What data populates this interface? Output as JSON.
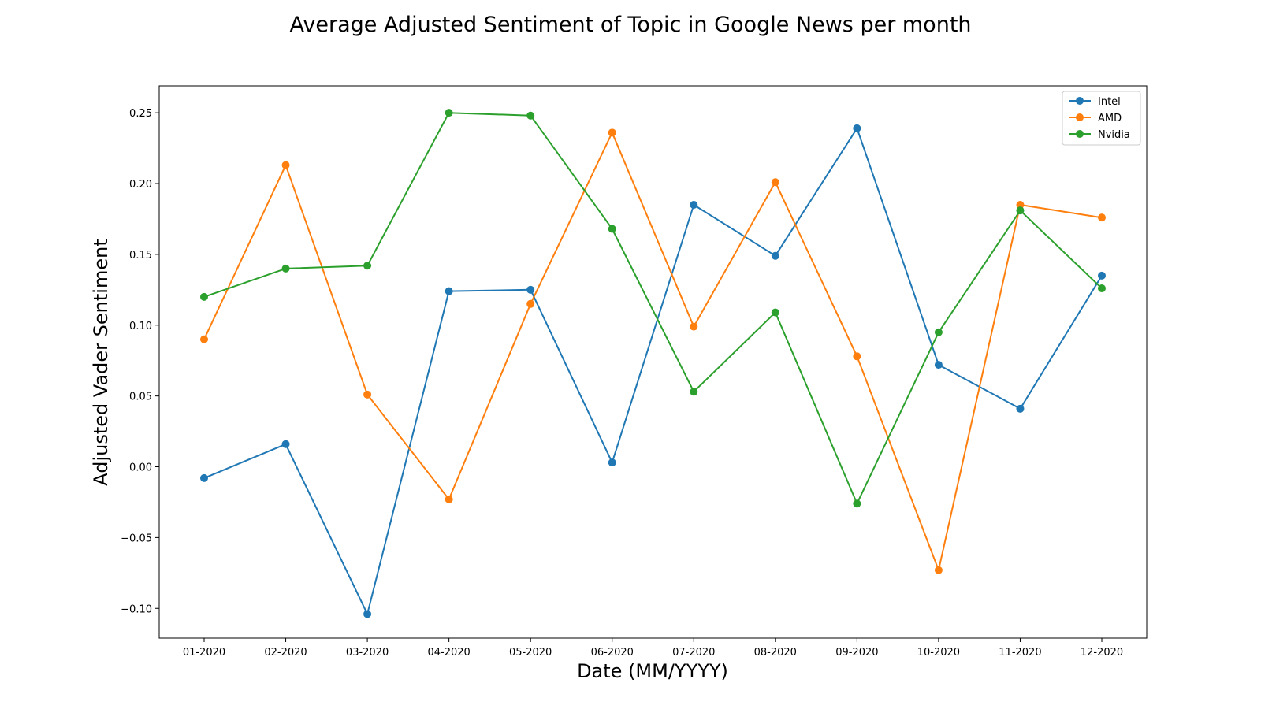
{
  "chart_data": {
    "type": "line",
    "title": "Average Adjusted Sentiment of Topic in Google News per month",
    "xlabel": "Date (MM/YYYY)",
    "ylabel": "Adjusted Vader Sentiment",
    "categories": [
      "01-2020",
      "02-2020",
      "03-2020",
      "04-2020",
      "05-2020",
      "06-2020",
      "07-2020",
      "08-2020",
      "09-2020",
      "10-2020",
      "11-2020",
      "12-2020"
    ],
    "ylim": [
      -0.121,
      0.269
    ],
    "yticks": [
      -0.1,
      -0.05,
      0.0,
      0.05,
      0.1,
      0.15,
      0.2,
      0.25
    ],
    "ytick_labels": [
      "−0.10",
      "−0.05",
      "0.00",
      "0.05",
      "0.10",
      "0.15",
      "0.20",
      "0.25"
    ],
    "grid": false,
    "legend_position": "top-right",
    "series": [
      {
        "name": "Intel",
        "color": "#1f77b4",
        "values": [
          -0.008,
          0.016,
          -0.104,
          0.124,
          0.125,
          0.003,
          0.185,
          0.149,
          0.239,
          0.072,
          0.041,
          0.135
        ]
      },
      {
        "name": "AMD",
        "color": "#ff7f0e",
        "values": [
          0.09,
          0.213,
          0.051,
          -0.023,
          0.115,
          0.236,
          0.099,
          0.201,
          0.078,
          -0.073,
          0.185,
          0.176
        ]
      },
      {
        "name": "Nvidia",
        "color": "#2ca02c",
        "values": [
          0.12,
          0.14,
          0.142,
          0.25,
          0.248,
          0.168,
          0.053,
          0.109,
          -0.026,
          0.095,
          0.181,
          0.126
        ]
      }
    ]
  }
}
